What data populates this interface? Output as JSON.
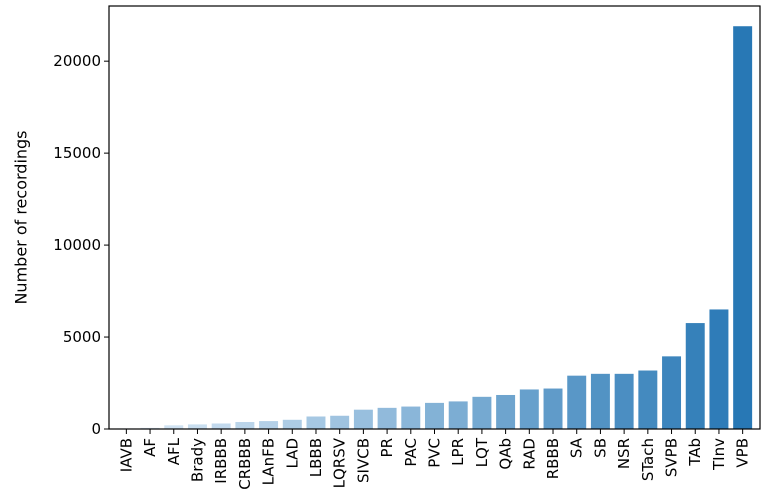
{
  "chart_data": {
    "type": "bar",
    "title": "",
    "xlabel": "",
    "ylabel": "Number of recordings",
    "ylim": [
      0,
      23000
    ],
    "yticks": [
      0,
      5000,
      10000,
      15000,
      20000
    ],
    "ytick_labels": [
      "0",
      "5000",
      "10000",
      "15000",
      "20000"
    ],
    "grid": false,
    "categories": [
      "IAVB",
      "AF",
      "AFL",
      "Brady",
      "IRBBB",
      "CRBBB",
      "LAnFB",
      "LAD",
      "LBBB",
      "LQRSV",
      "SIVCB",
      "PR",
      "PAC",
      "PVC",
      "LPR",
      "LQT",
      "QAb",
      "RAD",
      "RBBB",
      "SA",
      "SB",
      "NSR",
      "STach",
      "SVPB",
      "TAb",
      "TInv",
      "VPB"
    ],
    "values": [
      30,
      60,
      200,
      250,
      300,
      380,
      430,
      500,
      680,
      720,
      1050,
      1150,
      1220,
      1420,
      1500,
      1750,
      1850,
      2150,
      2200,
      2900,
      3000,
      3000,
      3180,
      3950,
      5760,
      6500,
      21900
    ],
    "color_light": "#deebf7",
    "color_dark": "#2878b5"
  }
}
